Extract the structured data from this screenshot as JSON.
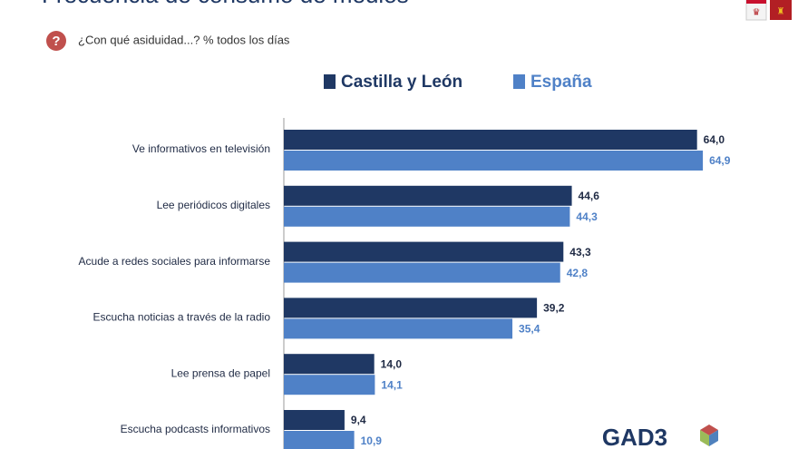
{
  "chart_data": {
    "type": "bar",
    "orientation": "horizontal",
    "title": "Frecuencia de consumo de medios",
    "subtitle": "¿Con qué asiduidad...? % todos los días",
    "logo": "GAD3",
    "categories": [
      "Ve informativos en televisión",
      "Lee periódicos digitales",
      "Acude a redes sociales para informarse",
      "Escucha noticias a través de la radio",
      "Lee prensa de papel",
      "Escucha podcasts informativos"
    ],
    "series": [
      {
        "name": "Castilla y León",
        "color": "#1f3864",
        "values": [
          64.0,
          44.6,
          43.3,
          39.2,
          14.0,
          9.4
        ],
        "value_labels": [
          "64,0",
          "44,6",
          "43,3",
          "39,2",
          "14,0",
          "9,4"
        ]
      },
      {
        "name": "España",
        "color": "#4f81c7",
        "values": [
          64.9,
          44.3,
          42.8,
          35.4,
          14.1,
          10.9
        ],
        "value_labels": [
          "64,9",
          "44,3",
          "42,8",
          "35,4",
          "14,1",
          "10,9"
        ]
      }
    ],
    "legend": "top"
  }
}
